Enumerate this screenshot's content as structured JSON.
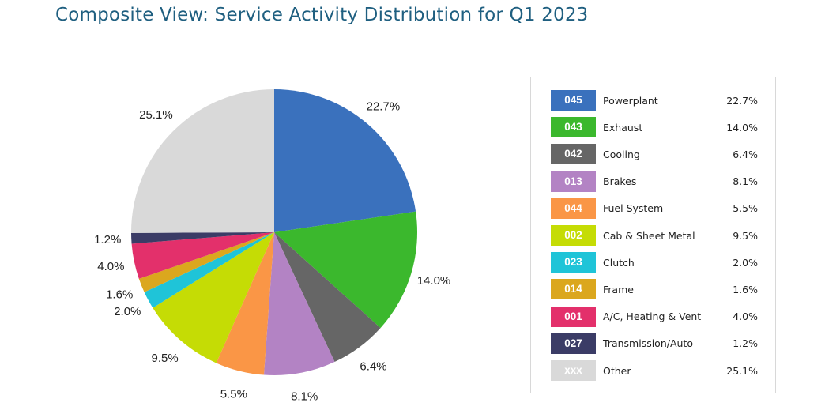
{
  "title": "Composite View: Service Activity Distribution for Q1 2023",
  "chart_data": {
    "type": "pie",
    "title": "Composite View: Service Activity Distribution for Q1 2023",
    "slices": [
      {
        "code": "045",
        "label": "Powerplant",
        "value": 22.7,
        "value_label": "22.7%",
        "color": "#3a71bd"
      },
      {
        "code": "043",
        "label": "Exhaust",
        "value": 14.0,
        "value_label": "14.0%",
        "color": "#3bb82d"
      },
      {
        "code": "042",
        "label": "Cooling",
        "value": 6.4,
        "value_label": "6.4%",
        "color": "#666666"
      },
      {
        "code": "013",
        "label": "Brakes",
        "value": 8.1,
        "value_label": "8.1%",
        "color": "#b383c4"
      },
      {
        "code": "044",
        "label": "Fuel System",
        "value": 5.5,
        "value_label": "5.5%",
        "color": "#fa9646"
      },
      {
        "code": "002",
        "label": "Cab & Sheet Metal",
        "value": 9.5,
        "value_label": "9.5%",
        "color": "#c5dc05"
      },
      {
        "code": "023",
        "label": "Clutch",
        "value": 2.0,
        "value_label": "2.0%",
        "color": "#1fc4d8"
      },
      {
        "code": "014",
        "label": "Frame",
        "value": 1.6,
        "value_label": "1.6%",
        "color": "#dba71e"
      },
      {
        "code": "001",
        "label": "A/C, Heating & Vent",
        "value": 4.0,
        "value_label": "4.0%",
        "color": "#e3306b"
      },
      {
        "code": "027",
        "label": "Transmission/Auto",
        "value": 1.2,
        "value_label": "1.2%",
        "color": "#3b3c66"
      },
      {
        "code": "xxx",
        "label": "Other",
        "value": 25.1,
        "value_label": "25.1%",
        "color": "#d9d9d9"
      }
    ],
    "legend": "right"
  }
}
